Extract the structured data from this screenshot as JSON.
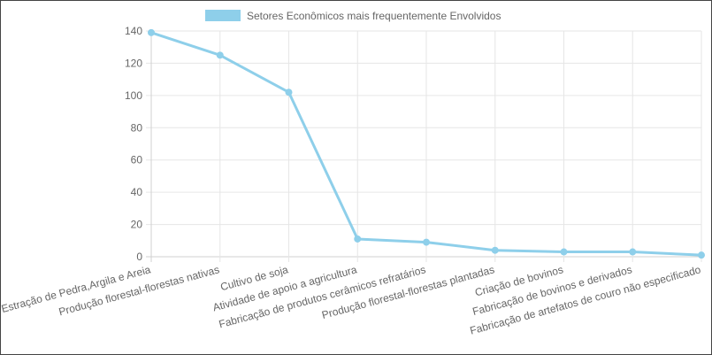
{
  "chart_data": {
    "type": "line",
    "categories": [
      "Estração de Pedra,Argila e Areia",
      "Produção florestal-florestas nativas",
      "Cultivo de soja",
      "Atividade de apoio a agricultura",
      "Fabricação de produtos cerâmicos refratários",
      "Produção florestal-florestas plantadas",
      "Criação de bovinos",
      "Fabricação de bovinos e derivados",
      "Fabricação de artefatos de couro não especificado"
    ],
    "series": [
      {
        "name": "Setores Econômicos mais frequentemente Envolvidos",
        "values": [
          139,
          125,
          102,
          11,
          9,
          4,
          3,
          3,
          1
        ]
      }
    ],
    "ylim": [
      0,
      140
    ],
    "yticks": [
      0,
      20,
      40,
      60,
      80,
      100,
      120,
      140
    ],
    "grid": true,
    "legend": "top-center",
    "colors": {
      "series": "#8ecfea",
      "legend_box": "#8ecfea"
    }
  }
}
